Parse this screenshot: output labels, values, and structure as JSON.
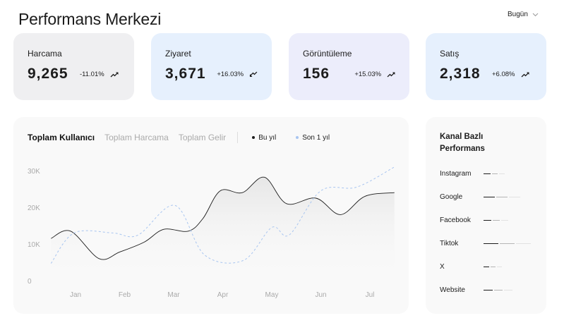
{
  "header": {
    "title": "Performans Merkezi",
    "range": "Bugün",
    "range_icon": "chevron-down-icon"
  },
  "cards": [
    {
      "label": "Harcama",
      "value": "9,265",
      "change": "-11.01%",
      "trend": "up",
      "bg": "#efeff1"
    },
    {
      "label": "Ziyaret",
      "value": "3,671",
      "change": "+16.03%",
      "trend": "down",
      "bg": "#e6f0fd"
    },
    {
      "label": "Görüntüleme",
      "value": "156",
      "change": "+15.03%",
      "trend": "up",
      "bg": "#ecedfb"
    },
    {
      "label": "Satış",
      "value": "2,318",
      "change": "+6.08%",
      "trend": "up",
      "bg": "#e6f0fd"
    }
  ],
  "chart": {
    "tabs": [
      "Toplam Kullanıcı",
      "Toplam Harcama",
      "Toplam Gelir"
    ],
    "active_tab": 0,
    "legend": [
      {
        "name": "Bu yıl",
        "color": "#1c1c1c"
      },
      {
        "name": "Son 1 yıl",
        "color": "#a8c5f0"
      }
    ]
  },
  "chart_data": {
    "type": "line",
    "categories": [
      "Jan",
      "Feb",
      "Mar",
      "Apr",
      "May",
      "Jun",
      "Jul"
    ],
    "yticks": [
      "0",
      "10K",
      "20K",
      "30K"
    ],
    "ylim": [
      0,
      30000
    ],
    "grid": false,
    "legend_placement": "top",
    "series": [
      {
        "name": "Bu yıl",
        "style": "solid",
        "color": "#1c1c1c",
        "fill": true,
        "points": [
          [
            0.5,
            11500
          ],
          [
            0.9,
            13500
          ],
          [
            1.48,
            6000
          ],
          [
            1.9,
            7800
          ],
          [
            2.4,
            10500
          ],
          [
            2.8,
            14000
          ],
          [
            3.3,
            13500
          ],
          [
            3.6,
            17000
          ],
          [
            3.95,
            24500
          ],
          [
            4.4,
            24000
          ],
          [
            4.85,
            28200
          ],
          [
            5.3,
            21000
          ],
          [
            5.9,
            22500
          ],
          [
            6.4,
            18000
          ],
          [
            6.9,
            23000
          ],
          [
            7.5,
            24000
          ]
        ]
      },
      {
        "name": "Son 1 yıl",
        "style": "dashed",
        "color": "#a8c5f0",
        "fill": false,
        "points": [
          [
            0.5,
            4700
          ],
          [
            0.97,
            13000
          ],
          [
            1.76,
            13000
          ],
          [
            2.27,
            12400
          ],
          [
            3.03,
            20500
          ],
          [
            3.63,
            7000
          ],
          [
            4.42,
            5500
          ],
          [
            5.0,
            14500
          ],
          [
            5.36,
            12500
          ],
          [
            6.0,
            24500
          ],
          [
            6.73,
            25500
          ],
          [
            7.5,
            31000
          ]
        ]
      }
    ]
  },
  "channels": {
    "title": "Kanal Bazlı Performans",
    "items": [
      {
        "name": "Instagram",
        "segments": [
          10,
          8,
          8
        ]
      },
      {
        "name": "Google",
        "segments": [
          16,
          16,
          16
        ]
      },
      {
        "name": "Facebook",
        "segments": [
          11,
          10,
          10
        ]
      },
      {
        "name": "Tiktok",
        "segments": [
          21,
          21,
          21
        ]
      },
      {
        "name": "X",
        "segments": [
          8,
          7,
          7
        ]
      },
      {
        "name": "Website",
        "segments": [
          13,
          12,
          12
        ]
      }
    ],
    "colors": [
      "#1c1c1c",
      "#b5b5b5",
      "#e2e2e2"
    ]
  }
}
